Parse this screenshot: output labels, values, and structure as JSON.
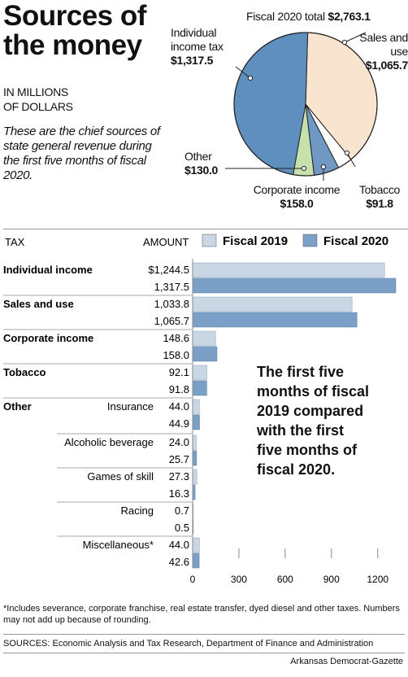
{
  "title_line1": "Sources of",
  "title_line2": "the money",
  "units_line1": "IN MILLIONS",
  "units_line2": "OF DOLLARS",
  "intro": "These are the chief sources of state general revenue during the first five months of fiscal 2020.",
  "pie": {
    "total_label": "Fiscal 2020 total",
    "total_value": "$2,763.1",
    "slices": [
      {
        "label": "Sales and use",
        "value": 1065.7,
        "display": "$1,065.7",
        "color": "#f9e5cf"
      },
      {
        "label": "Tobacco",
        "value": 91.8,
        "display": "$91.8",
        "color": "#ffffff"
      },
      {
        "label": "Corporate income",
        "value": 158.0,
        "display": "$158.0",
        "color": "#6f98c3"
      },
      {
        "label": "Other",
        "value": 130.0,
        "display": "$130.0",
        "color": "#c7e1ad"
      },
      {
        "label": "Individual income tax",
        "value": 1317.5,
        "display": "$1,317.5",
        "color": "#5f8fbf"
      }
    ]
  },
  "chart_data": {
    "type": "bar",
    "orientation": "horizontal",
    "column_headers": {
      "category": "TAX",
      "amount": "AMOUNT"
    },
    "legend": [
      {
        "name": "Fiscal 2019",
        "color": "#c9d6e4"
      },
      {
        "name": "Fiscal 2020",
        "color": "#7aa0c8"
      }
    ],
    "xlim": [
      0,
      1300
    ],
    "xticks": [
      0,
      300,
      600,
      900,
      1200
    ],
    "groups": [
      {
        "label": "Individual income",
        "sub": "",
        "fy2019": 1244.5,
        "fy2019_label": "$1,244.5",
        "fy2020": 1317.5,
        "fy2020_label": "1,317.5"
      },
      {
        "label": "Sales and use",
        "sub": "",
        "fy2019": 1033.8,
        "fy2019_label": "1,033.8",
        "fy2020": 1065.7,
        "fy2020_label": "1,065.7"
      },
      {
        "label": "Corporate income",
        "sub": "",
        "fy2019": 148.6,
        "fy2019_label": "148.6",
        "fy2020": 158.0,
        "fy2020_label": "158.0"
      },
      {
        "label": "Tobacco",
        "sub": "",
        "fy2019": 92.1,
        "fy2019_label": "92.1",
        "fy2020": 91.8,
        "fy2020_label": "91.8"
      },
      {
        "label": "Other",
        "sub": "Insurance",
        "fy2019": 44.0,
        "fy2019_label": "44.0",
        "fy2020": 44.9,
        "fy2020_label": "44.9"
      },
      {
        "label": "",
        "sub": "Alcoholic beverage",
        "fy2019": 24.0,
        "fy2019_label": "24.0",
        "fy2020": 25.7,
        "fy2020_label": "25.7"
      },
      {
        "label": "",
        "sub": "Games of skill",
        "fy2019": 27.3,
        "fy2019_label": "27.3",
        "fy2020": 16.3,
        "fy2020_label": "16.3"
      },
      {
        "label": "",
        "sub": "Racing",
        "fy2019": 0.7,
        "fy2019_label": "0.7",
        "fy2020": 0.5,
        "fy2020_label": "0.5"
      },
      {
        "label": "",
        "sub": "Miscellaneous*",
        "fy2019": 44.0,
        "fy2019_label": "44.0",
        "fy2020": 42.6,
        "fy2020_label": "42.6"
      }
    ],
    "annotation": "The first five months of fiscal 2019 compared with the first five months of fiscal 2020."
  },
  "footnote": "*Includes severance, corporate franchise, real estate transfer, dyed diesel and other taxes. Numbers may not add up because of rounding.",
  "sources": "SOURCES: Economic Analysis and Tax Research, Department of Finance and Administration",
  "credit": "Arkansas Democrat-Gazette"
}
